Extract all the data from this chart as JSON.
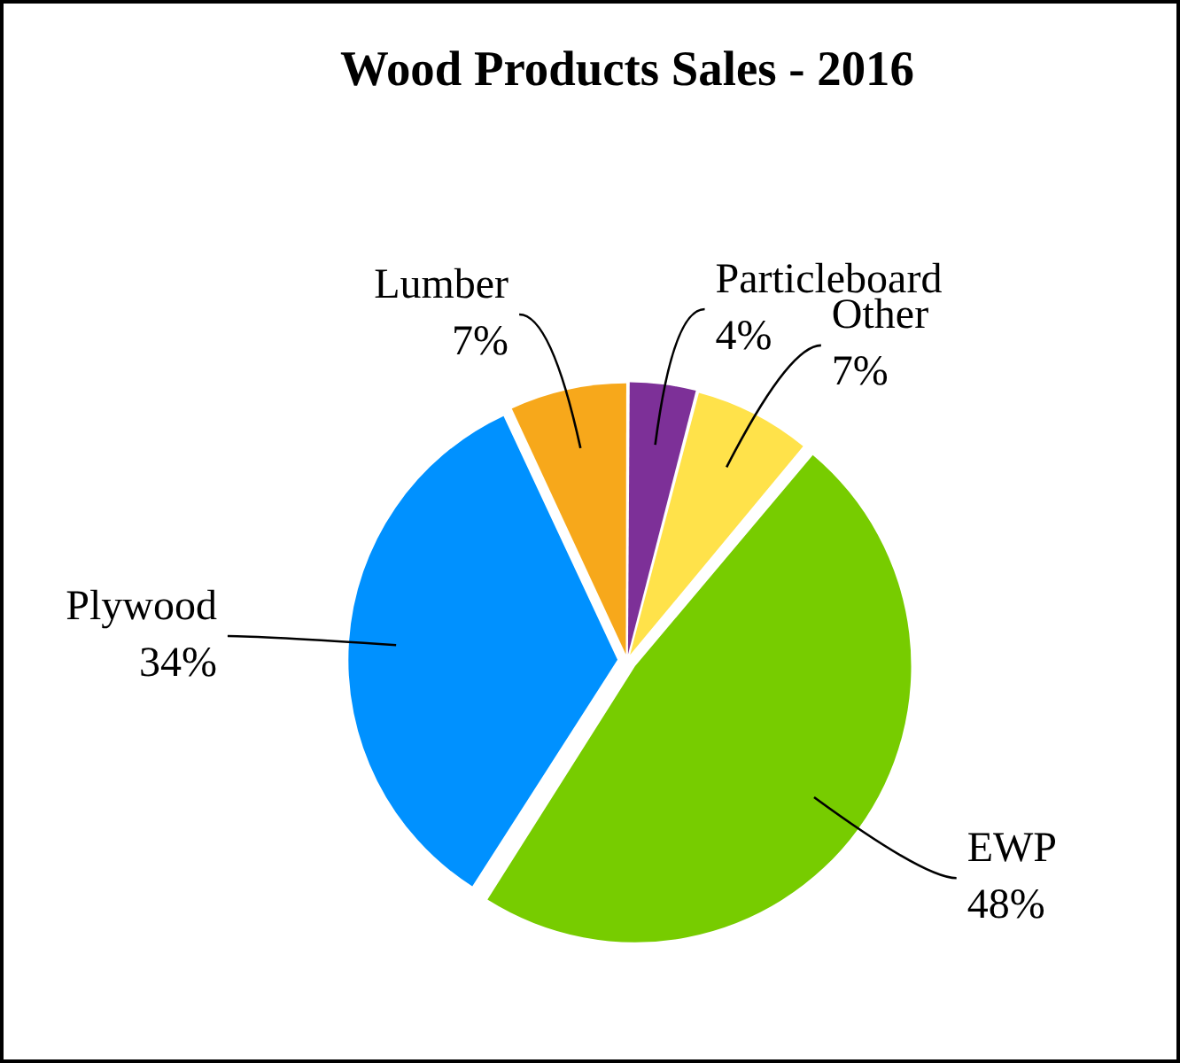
{
  "chart_data": {
    "type": "pie",
    "title": "Wood Products Sales - 2016",
    "categories": [
      "Lumber",
      "Particleboard",
      "Other",
      "EWP",
      "Plywood"
    ],
    "values": [
      7,
      4,
      7,
      48,
      34
    ],
    "colors": [
      "#f7a81b",
      "#7d3098",
      "#ffe24a",
      "#77cc00",
      "#0091ff"
    ],
    "value_labels": [
      "7%",
      "4%",
      "7%",
      "48%",
      "34%"
    ],
    "legend": false
  }
}
